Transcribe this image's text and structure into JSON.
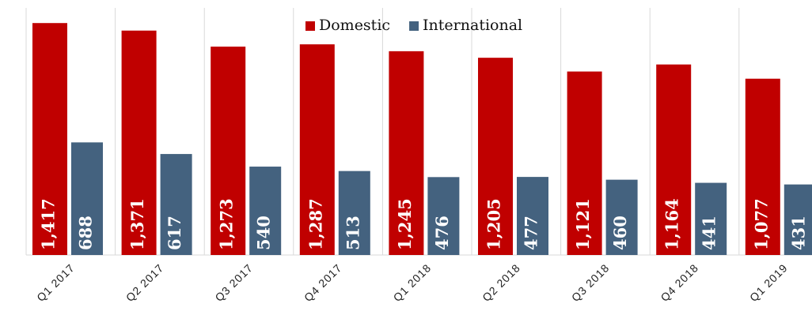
{
  "chart_data": {
    "type": "bar",
    "categories": [
      "Q1 2017",
      "Q2 2017",
      "Q3 2017",
      "Q4 2017",
      "Q1 2018",
      "Q2 2018",
      "Q3 2018",
      "Q4 2018",
      "Q1 2019"
    ],
    "series": [
      {
        "name": "Domestic",
        "color": "#c00000",
        "values": [
          1417,
          1371,
          1273,
          1287,
          1245,
          1205,
          1121,
          1164,
          1077
        ],
        "value_labels": [
          "1,417",
          "1,371",
          "1,273",
          "1,287",
          "1,245",
          "1,205",
          "1,121",
          "1,164",
          "1,077"
        ]
      },
      {
        "name": "International",
        "color": "#44627f",
        "values": [
          688,
          617,
          540,
          513,
          476,
          477,
          460,
          441,
          431
        ],
        "value_labels": [
          "688",
          "617",
          "540",
          "513",
          "476",
          "477",
          "460",
          "441",
          "431"
        ]
      }
    ],
    "ylim": [
      0,
      1500
    ],
    "legend": "top"
  }
}
